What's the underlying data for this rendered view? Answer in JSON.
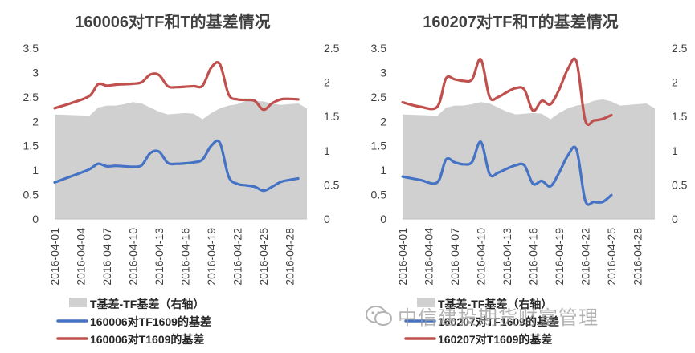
{
  "watermark": {
    "text": "中信建投期货财富管理",
    "icon": "wechat-icon"
  },
  "colors": {
    "area": "#d0d0d0",
    "blue": "#4472c4",
    "red": "#c0504d",
    "text": "#404040"
  },
  "chart_data": [
    {
      "type": "line",
      "title": "160006对TF和T的基差情况",
      "x": [
        "2016-04-01",
        "2016-04-04",
        "2016-04-07",
        "2016-04-10",
        "2016-04-13",
        "2016-04-16",
        "2016-04-19",
        "2016-04-22",
        "2016-04-25",
        "2016-04-28"
      ],
      "x_range": [
        0,
        29
      ],
      "ylim": [
        0,
        3.5
      ],
      "yticks": [
        "0",
        "0.5",
        "1",
        "1.5",
        "2",
        "2.5",
        "3",
        "3.5"
      ],
      "y2lim": [
        0,
        2.5
      ],
      "y2ticks": [
        "0",
        "0.5",
        "1",
        "1.5",
        "2",
        "2.5"
      ],
      "grid": false,
      "legend_position": "bottom",
      "series": [
        {
          "name": "T基差-TF基差（右轴）",
          "kind": "area",
          "axis": "y2",
          "color": "#d0d0d0",
          "points": [
            [
              0,
              1.53
            ],
            [
              4,
              1.51
            ],
            [
              5,
              1.63
            ],
            [
              6,
              1.66
            ],
            [
              7,
              1.66
            ],
            [
              8,
              1.68
            ],
            [
              9,
              1.71
            ],
            [
              10,
              1.69
            ],
            [
              11,
              1.63
            ],
            [
              12,
              1.57
            ],
            [
              13,
              1.53
            ],
            [
              14,
              1.54
            ],
            [
              15,
              1.55
            ],
            [
              16,
              1.54
            ],
            [
              17,
              1.46
            ],
            [
              18,
              1.55
            ],
            [
              19,
              1.62
            ],
            [
              20,
              1.66
            ],
            [
              21,
              1.68
            ],
            [
              22,
              1.73
            ],
            [
              23,
              1.73
            ],
            [
              24,
              1.72
            ],
            [
              25,
              1.69
            ],
            [
              26,
              1.67
            ],
            [
              27,
              1.68
            ],
            [
              28,
              1.69
            ],
            [
              29,
              1.62
            ]
          ]
        },
        {
          "name": "160006对TF1609的基差",
          "kind": "line",
          "axis": "y",
          "color": "#4472c4",
          "points": [
            [
              0,
              0.75
            ],
            [
              2,
              0.88
            ],
            [
              4,
              1.02
            ],
            [
              5,
              1.13
            ],
            [
              6,
              1.08
            ],
            [
              7,
              1.09
            ],
            [
              8,
              1.08
            ],
            [
              9,
              1.07
            ],
            [
              10,
              1.1
            ],
            [
              11,
              1.35
            ],
            [
              12,
              1.38
            ],
            [
              13,
              1.15
            ],
            [
              14,
              1.13
            ],
            [
              15,
              1.14
            ],
            [
              16,
              1.16
            ],
            [
              17,
              1.22
            ],
            [
              18,
              1.5
            ],
            [
              19,
              1.56
            ],
            [
              20,
              0.87
            ],
            [
              21,
              0.72
            ],
            [
              22,
              0.69
            ],
            [
              23,
              0.66
            ],
            [
              24,
              0.58
            ],
            [
              25,
              0.66
            ],
            [
              26,
              0.76
            ],
            [
              27,
              0.8
            ],
            [
              28,
              0.83
            ]
          ]
        },
        {
          "name": "160006对T1609的基差",
          "kind": "line",
          "axis": "y",
          "color": "#c0504d",
          "points": [
            [
              0,
              2.27
            ],
            [
              2,
              2.38
            ],
            [
              4,
              2.52
            ],
            [
              5,
              2.76
            ],
            [
              6,
              2.73
            ],
            [
              7,
              2.75
            ],
            [
              8,
              2.76
            ],
            [
              9,
              2.77
            ],
            [
              10,
              2.8
            ],
            [
              11,
              2.96
            ],
            [
              12,
              2.95
            ],
            [
              13,
              2.72
            ],
            [
              14,
              2.7
            ],
            [
              15,
              2.71
            ],
            [
              16,
              2.72
            ],
            [
              17,
              2.73
            ],
            [
              18,
              3.1
            ],
            [
              19,
              3.17
            ],
            [
              20,
              2.55
            ],
            [
              21,
              2.45
            ],
            [
              22,
              2.44
            ],
            [
              23,
              2.42
            ],
            [
              24,
              2.24
            ],
            [
              25,
              2.37
            ],
            [
              26,
              2.45
            ],
            [
              27,
              2.46
            ],
            [
              28,
              2.45
            ]
          ]
        }
      ]
    },
    {
      "type": "line",
      "title": "160207对TF和T的基差情况",
      "x": [
        "2016-04-01",
        "2016-04-04",
        "2016-04-07",
        "2016-04-10",
        "2016-04-13",
        "2016-04-16",
        "2016-04-19",
        "2016-04-22",
        "2016-04-25",
        "2016-04-28"
      ],
      "x_range": [
        0,
        29
      ],
      "ylim": [
        0,
        3.5
      ],
      "yticks": [
        "0",
        "0.5",
        "1",
        "1.5",
        "2",
        "2.5",
        "3",
        "3.5"
      ],
      "y2lim": [
        0,
        2.5
      ],
      "y2ticks": [
        "0",
        "0.5",
        "1",
        "1.5",
        "2",
        "2.5"
      ],
      "grid": false,
      "legend_position": "bottom",
      "series": [
        {
          "name": "T基差-TF基差（右轴）",
          "kind": "area",
          "axis": "y2",
          "color": "#d0d0d0",
          "points": [
            [
              0,
              1.53
            ],
            [
              4,
              1.51
            ],
            [
              5,
              1.63
            ],
            [
              6,
              1.66
            ],
            [
              7,
              1.66
            ],
            [
              8,
              1.68
            ],
            [
              9,
              1.71
            ],
            [
              10,
              1.69
            ],
            [
              11,
              1.63
            ],
            [
              12,
              1.57
            ],
            [
              13,
              1.53
            ],
            [
              14,
              1.54
            ],
            [
              15,
              1.55
            ],
            [
              16,
              1.54
            ],
            [
              17,
              1.46
            ],
            [
              18,
              1.55
            ],
            [
              19,
              1.62
            ],
            [
              20,
              1.66
            ],
            [
              21,
              1.68
            ],
            [
              22,
              1.73
            ],
            [
              23,
              1.75
            ],
            [
              24,
              1.72
            ],
            [
              25,
              1.66
            ],
            [
              26,
              1.67
            ],
            [
              27,
              1.68
            ],
            [
              28,
              1.69
            ],
            [
              29,
              1.62
            ]
          ]
        },
        {
          "name": "160207对TF1609的基差",
          "kind": "line",
          "axis": "y",
          "color": "#4472c4",
          "points": [
            [
              0,
              0.87
            ],
            [
              2,
              0.8
            ],
            [
              4,
              0.75
            ],
            [
              5,
              1.22
            ],
            [
              6,
              1.16
            ],
            [
              7,
              1.12
            ],
            [
              8,
              1.17
            ],
            [
              9,
              1.58
            ],
            [
              10,
              0.92
            ],
            [
              11,
              0.95
            ],
            [
              12,
              1.03
            ],
            [
              13,
              1.1
            ],
            [
              14,
              1.1
            ],
            [
              15,
              0.72
            ],
            [
              16,
              0.78
            ],
            [
              17,
              0.67
            ],
            [
              18,
              0.95
            ],
            [
              19,
              1.3
            ],
            [
              20,
              1.42
            ],
            [
              21,
              0.38
            ],
            [
              22,
              0.35
            ],
            [
              23,
              0.35
            ],
            [
              24,
              0.49
            ]
          ]
        },
        {
          "name": "160207对T1609的基差",
          "kind": "line",
          "axis": "y",
          "color": "#c0504d",
          "points": [
            [
              0,
              2.39
            ],
            [
              2,
              2.3
            ],
            [
              4,
              2.3
            ],
            [
              5,
              2.88
            ],
            [
              6,
              2.86
            ],
            [
              7,
              2.83
            ],
            [
              8,
              2.86
            ],
            [
              9,
              3.27
            ],
            [
              10,
              2.5
            ],
            [
              11,
              2.5
            ],
            [
              12,
              2.6
            ],
            [
              13,
              2.68
            ],
            [
              14,
              2.65
            ],
            [
              15,
              2.22
            ],
            [
              16,
              2.42
            ],
            [
              17,
              2.35
            ],
            [
              18,
              2.65
            ],
            [
              19,
              3.07
            ],
            [
              20,
              3.22
            ],
            [
              21,
              2.02
            ],
            [
              22,
              2.02
            ],
            [
              23,
              2.05
            ],
            [
              24,
              2.13
            ]
          ]
        }
      ]
    }
  ]
}
